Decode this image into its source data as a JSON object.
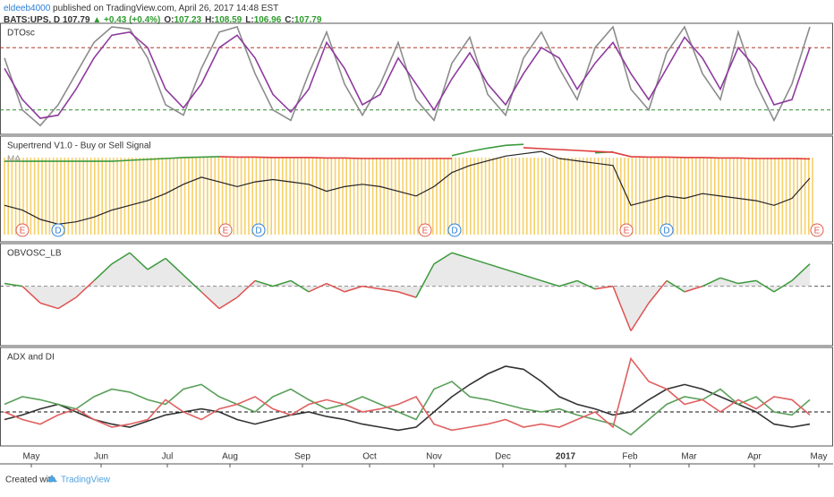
{
  "header": {
    "user": "eldeeb4000",
    "published": " published on TradingView.com, April 26, 2017 14:48 EST",
    "symbol": "BATS:UPS, D",
    "last": "107.79",
    "change": "▲ +0.43 (+0.4%)",
    "ohlc": [
      {
        "key": "O:",
        "value": "107.23"
      },
      {
        "key": "H:",
        "value": "108.59"
      },
      {
        "key": "L:",
        "value": "106.96"
      },
      {
        "key": "C:",
        "value": "107.79"
      }
    ]
  },
  "footer": {
    "created": "Created with",
    "brand": "TradingView"
  },
  "chart_data": [
    {
      "type": "line",
      "title": "DTOsc",
      "xlim": [
        0,
        45.5
      ],
      "ylim": [
        0,
        100
      ],
      "series": [
        {
          "color": "#8c8c8c",
          "values": [
            70,
            20,
            5,
            25,
            55,
            85,
            100,
            98,
            70,
            25,
            15,
            60,
            95,
            100,
            55,
            20,
            10,
            55,
            95,
            45,
            15,
            45,
            85,
            30,
            10,
            65,
            90,
            35,
            15,
            70,
            95,
            60,
            30,
            80,
            100,
            40,
            20,
            75,
            100,
            55,
            30,
            95,
            45,
            10,
            45,
            100
          ]
        },
        {
          "color": "#8e3a9e",
          "values": [
            60,
            30,
            12,
            15,
            40,
            70,
            92,
            95,
            80,
            40,
            22,
            45,
            80,
            92,
            70,
            35,
            18,
            40,
            85,
            60,
            25,
            35,
            70,
            45,
            20,
            50,
            75,
            45,
            25,
            55,
            80,
            70,
            40,
            65,
            85,
            55,
            30,
            60,
            90,
            70,
            40,
            80,
            60,
            25,
            30,
            80
          ]
        }
      ],
      "levels": [
        {
          "value": 80,
          "color": "#b03a2e"
        },
        {
          "value": 20,
          "color": "#2e8b2e"
        }
      ]
    },
    {
      "type": "line",
      "title": "Supertrend V1.0 - Buy or Sell Signal",
      "subtitle": "MA",
      "xlim": [
        0,
        45.5
      ],
      "ylim": [
        95,
        116
      ],
      "series": [
        {
          "color": "#222222",
          "values": [
            102,
            101,
            99,
            98,
            98.5,
            99.5,
            101,
            102,
            103,
            104.5,
            106.5,
            108,
            107,
            106,
            107,
            107.5,
            107,
            106.5,
            105,
            106,
            106.5,
            106,
            105,
            104,
            106,
            109,
            110.5,
            111.5,
            112.5,
            113,
            113.5,
            112,
            111.5,
            111,
            110.5,
            102,
            103,
            104,
            103.5,
            104.5,
            104,
            103.5,
            103,
            102,
            103.5,
            107.79
          ]
        },
        {
          "color": "#3c9a3c",
          "values": [
            111.4,
            111.4,
            111.4,
            111.4,
            111.4,
            111.4,
            111.4,
            111.6,
            111.8,
            112,
            112.2,
            112.3,
            112.4,
            null,
            null,
            null,
            null,
            null,
            null,
            null,
            null,
            null,
            null,
            null,
            null,
            112.6,
            113.5,
            114.2,
            114.8,
            115,
            null,
            null,
            null,
            113.2,
            113.4,
            null,
            null,
            null,
            null,
            null,
            null,
            null,
            null,
            null,
            null,
            null
          ]
        },
        {
          "color": "#e03c3c",
          "values": [
            null,
            null,
            null,
            null,
            null,
            null,
            null,
            null,
            null,
            null,
            null,
            null,
            112.4,
            112.3,
            112.3,
            112.2,
            112.2,
            112.2,
            112.1,
            112.1,
            112,
            112,
            112,
            112,
            112,
            112,
            null,
            null,
            null,
            114.3,
            114.1,
            113.9,
            113.7,
            113.5,
            113.3,
            112.4,
            112.3,
            112.3,
            112.2,
            112.2,
            112.1,
            112.1,
            112,
            112,
            112,
            111.9
          ]
        }
      ],
      "events": [
        {
          "label": "E",
          "x": 1
        },
        {
          "label": "D",
          "x": 3
        },
        {
          "label": "E",
          "x": 12.35
        },
        {
          "label": "D",
          "x": 14.2
        },
        {
          "label": "E",
          "x": 23.5
        },
        {
          "label": "D",
          "x": 25.15
        },
        {
          "label": "E",
          "x": 34.75
        },
        {
          "label": "D",
          "x": 37
        },
        {
          "label": "E",
          "x": 45.4
        }
      ]
    },
    {
      "type": "oscillator",
      "title": "OBVOSC_LB",
      "xlim": [
        0,
        45.5
      ],
      "ylim": [
        -10,
        7
      ],
      "values": [
        0.5,
        0,
        -3,
        -4,
        -2,
        1,
        4,
        6,
        3,
        5,
        2,
        -1,
        -4,
        -2,
        1,
        0,
        1,
        -1,
        0.5,
        -1,
        0,
        -0.5,
        -1,
        -2,
        4,
        6,
        5,
        4,
        3,
        2,
        1,
        0,
        1,
        -0.5,
        0,
        -8,
        -3,
        1,
        -1,
        0,
        1.5,
        0.5,
        1,
        -1,
        1,
        4
      ],
      "up_color": "#3c9a3c",
      "down_color": "#e05050",
      "levels": [
        {
          "value": 0,
          "color": "#555555"
        }
      ]
    },
    {
      "type": "line",
      "title": "ADX and DI",
      "xlim": [
        0,
        45.5
      ],
      "ylim": [
        0,
        60
      ],
      "series": [
        {
          "color": "#333333",
          "values": [
            15,
            18,
            22,
            25,
            20,
            15,
            12,
            10,
            14,
            18,
            20,
            22,
            20,
            15,
            12,
            15,
            18,
            20,
            17,
            15,
            12,
            10,
            8,
            10,
            20,
            30,
            38,
            45,
            50,
            48,
            40,
            30,
            25,
            22,
            18,
            20,
            28,
            35,
            38,
            35,
            30,
            25,
            20,
            12,
            10,
            12
          ]
        },
        {
          "color": "#5aa05a",
          "values": [
            25,
            30,
            28,
            25,
            22,
            30,
            35,
            33,
            28,
            25,
            35,
            38,
            30,
            25,
            20,
            30,
            35,
            28,
            22,
            25,
            30,
            25,
            20,
            15,
            35,
            40,
            30,
            28,
            25,
            22,
            20,
            22,
            18,
            15,
            12,
            5,
            15,
            25,
            30,
            28,
            35,
            25,
            30,
            20,
            18,
            28
          ]
        },
        {
          "color": "#e06060",
          "values": [
            20,
            15,
            12,
            18,
            22,
            15,
            10,
            12,
            15,
            28,
            20,
            15,
            22,
            25,
            30,
            22,
            18,
            25,
            28,
            25,
            20,
            22,
            25,
            30,
            12,
            8,
            10,
            12,
            15,
            10,
            12,
            10,
            15,
            20,
            10,
            55,
            40,
            35,
            25,
            28,
            20,
            28,
            22,
            30,
            28,
            18
          ]
        }
      ],
      "levels": [
        {
          "value": 20,
          "color": "#111111"
        }
      ],
      "xticks": [
        {
          "value": 1.5,
          "label": "May"
        },
        {
          "value": 5.4,
          "label": "Jun"
        },
        {
          "value": 9.1,
          "label": "Jul"
        },
        {
          "value": 12.6,
          "label": "Aug"
        },
        {
          "value": 16.65,
          "label": "Sep"
        },
        {
          "value": 20.4,
          "label": "Oct"
        },
        {
          "value": 24,
          "label": "Nov"
        },
        {
          "value": 27.85,
          "label": "Dec"
        },
        {
          "value": 31.35,
          "label": "2017"
        },
        {
          "value": 34.95,
          "label": "Feb"
        },
        {
          "value": 38.25,
          "label": "Mar"
        },
        {
          "value": 41.9,
          "label": "Apr"
        },
        {
          "value": 45.5,
          "label": "May"
        }
      ]
    }
  ]
}
